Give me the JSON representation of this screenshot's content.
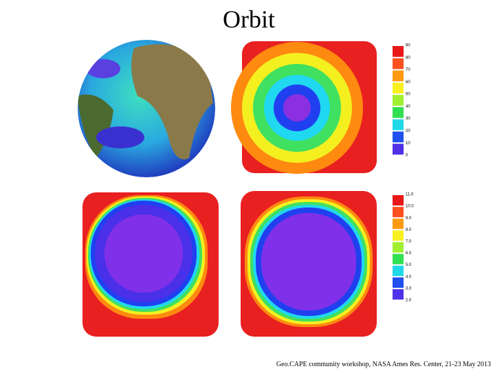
{
  "slide": {
    "title": "Orbit",
    "colorbar_top": {
      "labels": [
        "90",
        "80",
        "70",
        "60",
        "50",
        "40",
        "30",
        "20",
        "10",
        "0"
      ]
    },
    "colorbar_bottom": {
      "labels": [
        "11.0",
        "10.0",
        "9.0",
        "8.0",
        "7.0",
        "6.0",
        "5.0",
        "4.0",
        "3.0",
        "2.0"
      ]
    },
    "footer": "Geo.CAPE community workshop, NASA Ames Res. Center, 21-23 May 2013"
  }
}
